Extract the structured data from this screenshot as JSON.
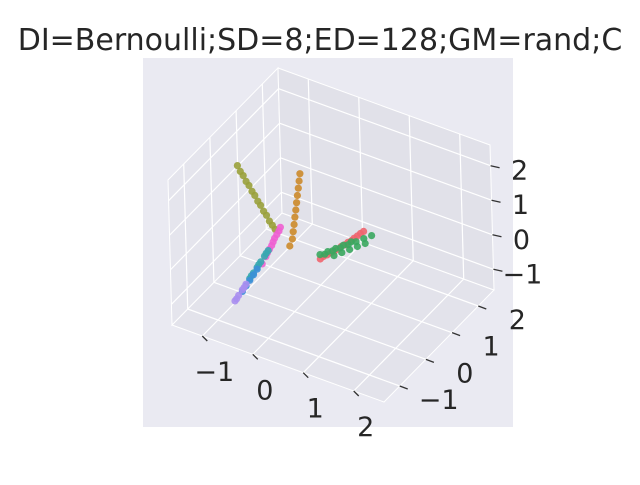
{
  "chart_data": {
    "type": "scatter",
    "projection": "3d",
    "title": "DI=Bernoulli;SD=8;ED=128;GM=rand;C",
    "xlabel": "",
    "ylabel": "",
    "zlabel": "",
    "grid": true,
    "legend": "none",
    "background_color": "#eaeaf2",
    "xlim": [
      -1.6,
      2.6
    ],
    "ylim": [
      -1.6,
      2.6
    ],
    "zlim": [
      -1.6,
      2.6
    ],
    "x_ticks": [
      "−1",
      "0",
      "1",
      "2"
    ],
    "y_ticks": [
      "−1",
      "0",
      "1",
      "2"
    ],
    "z_ticks": [
      "−1",
      "0",
      "1",
      "2"
    ],
    "x_tick_values": [
      -1,
      0,
      1,
      2
    ],
    "y_tick_values": [
      -1,
      0,
      1,
      2
    ],
    "z_tick_values": [
      -1,
      0,
      1,
      2
    ],
    "series": [
      {
        "color": "#f0646e",
        "points": [
          [
            -0.05,
            1.1,
            -0.95
          ],
          [
            -0.02,
            1.3,
            -0.97
          ],
          [
            0.02,
            1.5,
            -0.99
          ],
          [
            0.05,
            1.7,
            -1.0
          ],
          [
            0.08,
            1.9,
            -1.02
          ],
          [
            0.1,
            2.1,
            -1.04
          ],
          [
            0.12,
            2.3,
            -1.05
          ],
          [
            -0.04,
            1.2,
            -0.95
          ],
          [
            0.0,
            1.4,
            -0.98
          ],
          [
            0.04,
            1.6,
            -1.0
          ],
          [
            0.07,
            1.8,
            -1.02
          ],
          [
            0.1,
            2.0,
            -1.03
          ],
          [
            0.11,
            2.2,
            -1.05
          ],
          [
            0.13,
            2.4,
            -1.06
          ]
        ]
      },
      {
        "color": "#3aa75f",
        "points": [
          [
            0.15,
            0.9,
            -0.55
          ],
          [
            0.2,
            1.1,
            -0.58
          ],
          [
            0.25,
            1.3,
            -0.62
          ],
          [
            0.3,
            1.5,
            -0.66
          ],
          [
            0.35,
            1.7,
            -0.7
          ],
          [
            0.4,
            1.9,
            -0.74
          ],
          [
            0.45,
            2.1,
            -0.78
          ],
          [
            0.28,
            1.0,
            -0.6
          ],
          [
            0.33,
            1.2,
            -0.64
          ],
          [
            0.38,
            1.4,
            -0.68
          ],
          [
            0.43,
            1.6,
            -0.72
          ],
          [
            0.48,
            1.8,
            -0.76
          ],
          [
            0.0,
            1.0,
            -0.72
          ],
          [
            0.05,
            1.2,
            -0.76
          ],
          [
            0.1,
            1.4,
            -0.8
          ],
          [
            0.15,
            1.6,
            -0.83
          ],
          [
            0.2,
            1.8,
            -0.86
          ]
        ]
      },
      {
        "color": "#cc8a2a",
        "points": [
          [
            -0.15,
            0.5,
            1.3
          ],
          [
            -0.14,
            0.52,
            1.5
          ],
          [
            -0.13,
            0.54,
            1.7
          ],
          [
            -0.12,
            0.56,
            1.9
          ],
          [
            -0.16,
            0.48,
            1.1
          ],
          [
            -0.17,
            0.46,
            0.9
          ],
          [
            -0.18,
            0.44,
            0.7
          ],
          [
            -0.19,
            0.42,
            0.5
          ],
          [
            -0.2,
            0.4,
            0.3
          ],
          [
            -0.21,
            0.38,
            0.1
          ],
          [
            -0.25,
            0.35,
            -0.1
          ]
        ]
      },
      {
        "color": "#99a03a",
        "points": [
          [
            -1.2,
            0.25,
            1.8
          ],
          [
            -1.1,
            0.27,
            1.55
          ],
          [
            -1.0,
            0.29,
            1.3
          ],
          [
            -0.9,
            0.31,
            1.05
          ],
          [
            -0.8,
            0.33,
            0.8
          ],
          [
            -0.7,
            0.35,
            0.55
          ],
          [
            -0.6,
            0.37,
            0.3
          ],
          [
            -1.15,
            0.26,
            1.65
          ],
          [
            -1.05,
            0.28,
            1.4
          ],
          [
            -0.95,
            0.3,
            1.15
          ],
          [
            -0.85,
            0.32,
            0.9
          ],
          [
            -0.75,
            0.34,
            0.65
          ],
          [
            -0.65,
            0.36,
            0.4
          ],
          [
            -0.55,
            0.38,
            0.2
          ]
        ]
      },
      {
        "color": "#ee5fd1",
        "points": [
          [
            -0.4,
            0.3,
            0.4
          ],
          [
            -0.45,
            0.25,
            0.2
          ],
          [
            -0.5,
            0.2,
            0.0
          ],
          [
            -0.55,
            0.15,
            -0.2
          ],
          [
            -0.6,
            0.1,
            -0.4
          ],
          [
            -0.65,
            0.05,
            -0.6
          ],
          [
            -0.42,
            0.28,
            0.3
          ],
          [
            -0.48,
            0.22,
            0.1
          ],
          [
            -0.52,
            0.18,
            -0.1
          ],
          [
            -0.58,
            0.12,
            -0.3
          ]
        ]
      },
      {
        "color": "#36a9b0",
        "points": [
          [
            -0.55,
            0.1,
            -0.2
          ],
          [
            -0.6,
            0.05,
            -0.35
          ],
          [
            -0.65,
            0.0,
            -0.5
          ],
          [
            -0.7,
            -0.05,
            -0.65
          ],
          [
            -0.75,
            -0.1,
            -0.8
          ],
          [
            -0.8,
            -0.15,
            -0.95
          ],
          [
            -0.58,
            0.08,
            -0.28
          ],
          [
            -0.68,
            -0.02,
            -0.58
          ],
          [
            -0.78,
            -0.12,
            -0.88
          ]
        ]
      },
      {
        "color": "#3c8fd8",
        "points": [
          [
            -0.7,
            -0.05,
            -0.7
          ],
          [
            -0.75,
            -0.1,
            -0.85
          ],
          [
            -0.8,
            -0.15,
            -1.0
          ],
          [
            -0.85,
            -0.2,
            -1.15
          ],
          [
            -0.9,
            -0.25,
            -1.3
          ]
        ]
      },
      {
        "color": "#a98ef0",
        "points": [
          [
            -0.85,
            -0.2,
            -1.1
          ],
          [
            -0.9,
            -0.25,
            -1.25
          ],
          [
            -0.95,
            -0.3,
            -1.4
          ],
          [
            -1.0,
            -0.35,
            -1.55
          ],
          [
            -0.88,
            -0.22,
            -1.2
          ],
          [
            -0.98,
            -0.32,
            -1.5
          ]
        ]
      }
    ]
  }
}
